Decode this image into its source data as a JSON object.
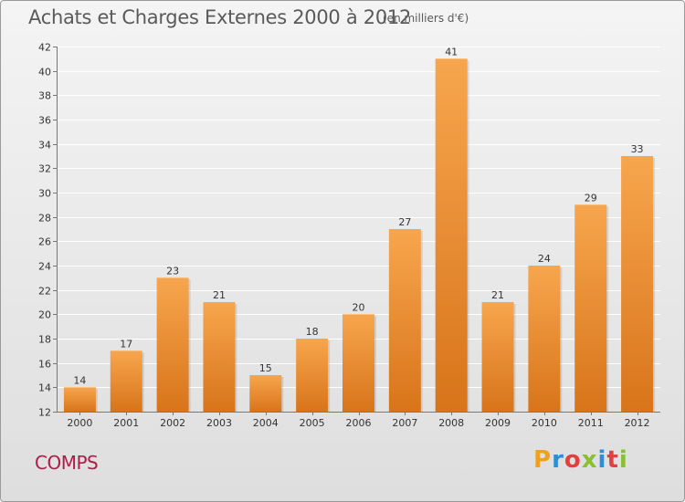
{
  "header": {
    "title": "Achats et Charges Externes 2000 à 2012",
    "subtitle": "(en milliers d'€)"
  },
  "footer": {
    "commune": "COMPS",
    "logo_text": "Proxiti"
  },
  "colors": {
    "bar_top": "#f7a64e",
    "bar_bottom": "#d8741a",
    "commune": "#b01c4a",
    "logo_letters": [
      "#f0a020",
      "#2a8fd8",
      "#e04040",
      "#88c030",
      "#2a8fd8",
      "#e04040",
      "#88c030"
    ]
  },
  "chart_data": {
    "type": "bar",
    "categories": [
      "2000",
      "2001",
      "2002",
      "2003",
      "2004",
      "2005",
      "2006",
      "2007",
      "2008",
      "2009",
      "2010",
      "2011",
      "2012"
    ],
    "values": [
      14,
      17,
      23,
      21,
      15,
      18,
      20,
      27,
      41,
      21,
      24,
      29,
      33
    ],
    "ylim": [
      12,
      42
    ],
    "yticks": [
      12,
      14,
      16,
      18,
      20,
      22,
      24,
      26,
      28,
      30,
      32,
      34,
      36,
      38,
      40,
      42
    ],
    "grid": true
  }
}
